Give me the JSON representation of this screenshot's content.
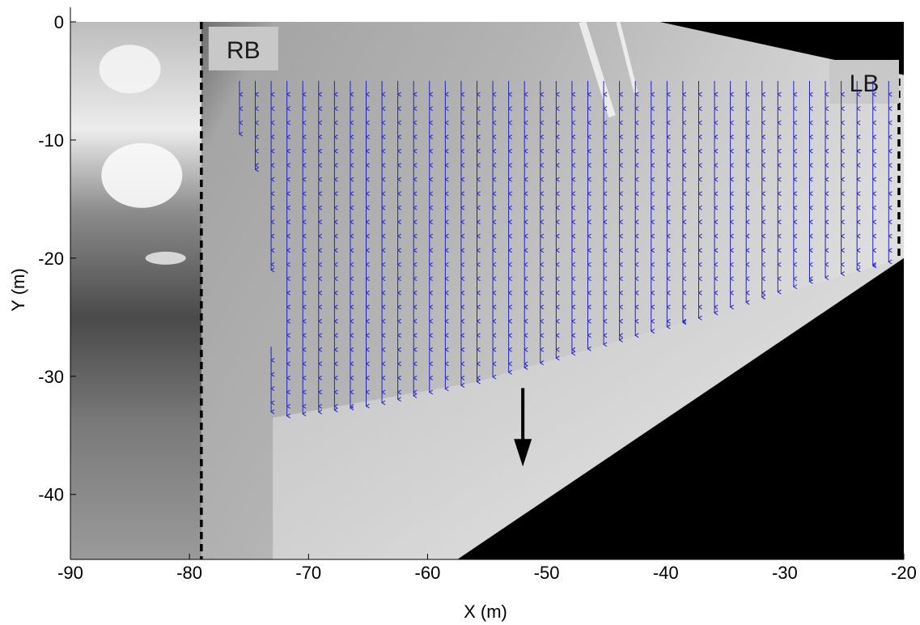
{
  "chart_data": {
    "type": "quiver",
    "xlabel": "X (m)",
    "ylabel": "Y (m)",
    "xlim": [
      -90,
      -20
    ],
    "ylim": [
      -45.5,
      0
    ],
    "xticks": [
      -90,
      -80,
      -70,
      -60,
      -50,
      -40,
      -30,
      -20
    ],
    "yticks": [
      0,
      -10,
      -20,
      -30,
      -40
    ],
    "grid": false,
    "background": "grayscale river-surface image",
    "vector_color": "#2020cc",
    "arrow_color": "#000000",
    "vectors": {
      "x_start": -75.8,
      "x_spacing": 1.33,
      "count": 42,
      "y_top": -5,
      "u": 0,
      "v": -1,
      "columns": [
        {
          "x": -75.8,
          "y_top": -5,
          "y_bottom": -9.5
        },
        {
          "x": -74.5,
          "y_top": -5,
          "y_bottom": -12.5
        },
        {
          "x": -73.1,
          "y_top": -5,
          "y_bottom": -21,
          "y_top2": -27.5,
          "y_bottom2": -33
        }
      ],
      "lower_boundary": [
        [
          -73,
          -33.5
        ],
        [
          -65,
          -32.5
        ],
        [
          -56,
          -30.5
        ],
        [
          -47,
          -27.8
        ],
        [
          -37,
          -25
        ],
        [
          -28,
          -22
        ],
        [
          -20,
          -20
        ]
      ]
    },
    "banks": [
      {
        "label": "RB",
        "x": -79
      },
      {
        "label": "LB",
        "x": -20
      }
    ],
    "flow_arrow": {
      "x": -52,
      "y_start": -31,
      "y_end": -37.5
    }
  }
}
